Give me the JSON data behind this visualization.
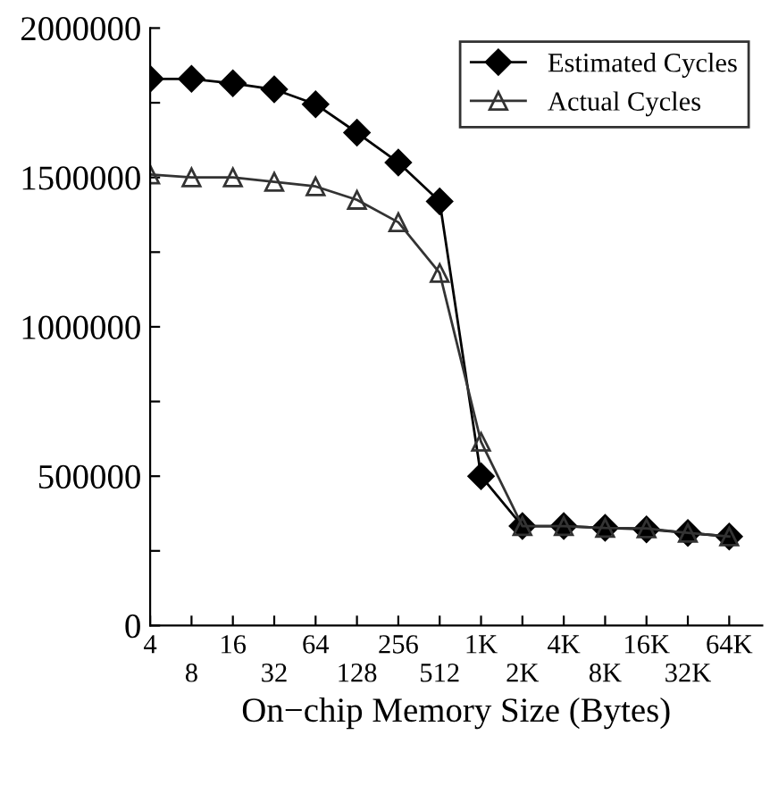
{
  "chart_data": {
    "type": "line",
    "xlabel": "On−chip Memory Size (Bytes)",
    "categories": [
      "4",
      "8",
      "16",
      "32",
      "64",
      "128",
      "256",
      "512",
      "1K",
      "2K",
      "4K",
      "8K",
      "16K",
      "32K",
      "64K"
    ],
    "series": [
      {
        "name": "Estimated Cycles",
        "color": "#000000",
        "marker": "diamond",
        "values": [
          1830000,
          1830000,
          1815000,
          1795000,
          1745000,
          1650000,
          1550000,
          1420000,
          500000,
          333000,
          333000,
          327000,
          322000,
          310000,
          298000
        ]
      },
      {
        "name": "Actual Cycles",
        "color": "#333333",
        "marker": "triangle",
        "values": [
          1510000,
          1500000,
          1500000,
          1485000,
          1470000,
          1425000,
          1350000,
          1180000,
          615000,
          333000,
          333000,
          327000,
          325000,
          310000,
          298000
        ]
      }
    ],
    "ylim": [
      0,
      2000000
    ],
    "yticks": [
      0,
      {
        "value": 250000,
        "label": null
      },
      500000,
      {
        "value": 750000,
        "label": null
      },
      1000000,
      {
        "value": 1250000,
        "label": null
      },
      1500000,
      {
        "value": 1750000,
        "label": null
      },
      2000000
    ],
    "grid": false,
    "legend": "top right",
    "line_style": "solid"
  }
}
